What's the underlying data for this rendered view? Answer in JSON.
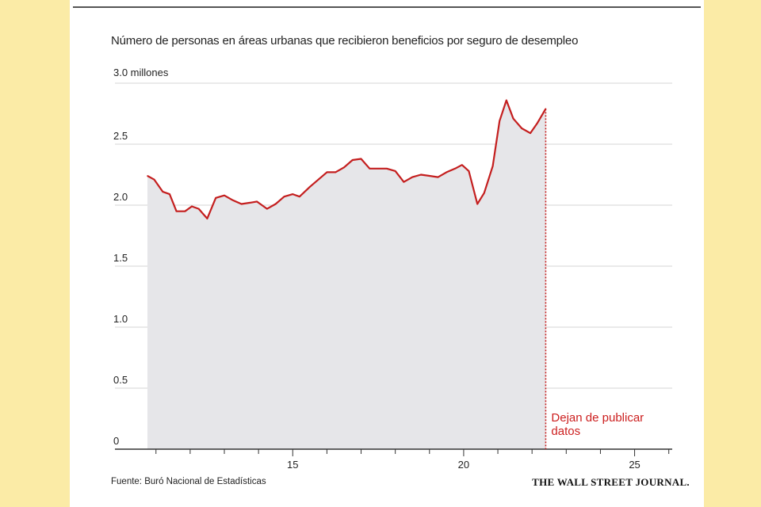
{
  "chart_data": {
    "type": "area",
    "title": "Número de personas en áreas urbanas que recibieron beneficios por seguro de desempleo",
    "y_unit_label": "3.0 millones",
    "y_ticks": [
      "0",
      "0.5",
      "1.0",
      "1.5",
      "2.0",
      "2.5"
    ],
    "y_tick_values": [
      0,
      0.5,
      1.0,
      1.5,
      2.0,
      2.5,
      3.0
    ],
    "x_ticks": [
      "15",
      "20",
      "25"
    ],
    "x_tick_values": [
      15,
      20,
      25
    ],
    "xlim": [
      9.8,
      26.1
    ],
    "ylim": [
      0,
      3.0
    ],
    "grid": true,
    "x": [
      10.75,
      10.95,
      11.2,
      11.4,
      11.6,
      11.85,
      12.05,
      12.25,
      12.5,
      12.75,
      13.0,
      13.25,
      13.5,
      13.75,
      13.95,
      14.25,
      14.5,
      14.75,
      15.0,
      15.2,
      15.5,
      15.75,
      16.0,
      16.25,
      16.5,
      16.75,
      17.0,
      17.25,
      17.5,
      17.75,
      18.0,
      18.25,
      18.5,
      18.75,
      19.0,
      19.25,
      19.5,
      19.75,
      19.95,
      20.15,
      20.4,
      20.6,
      20.85,
      21.05,
      21.25,
      21.45,
      21.7,
      21.95,
      22.15,
      22.4
    ],
    "values": [
      2.24,
      2.21,
      2.11,
      2.09,
      1.95,
      1.95,
      1.99,
      1.97,
      1.89,
      2.06,
      2.08,
      2.04,
      2.01,
      2.02,
      2.03,
      1.97,
      2.01,
      2.07,
      2.09,
      2.07,
      2.15,
      2.21,
      2.27,
      2.27,
      2.31,
      2.37,
      2.38,
      2.3,
      2.3,
      2.3,
      2.28,
      2.19,
      2.23,
      2.25,
      2.24,
      2.23,
      2.27,
      2.3,
      2.33,
      2.28,
      2.01,
      2.1,
      2.32,
      2.69,
      2.86,
      2.71,
      2.63,
      2.59,
      2.67,
      2.79
    ],
    "cutoff_x": 22.4,
    "annotation_lines": [
      "Dejan de publicar",
      "datos"
    ],
    "line_color": "#c41e1e",
    "area_color": "#e6e6e9",
    "annotation_color": "#cc1f1f"
  },
  "source": "Fuente: Buró Nacional de Estadísticas",
  "publisher": "THE WALL STREET JOURNAL."
}
